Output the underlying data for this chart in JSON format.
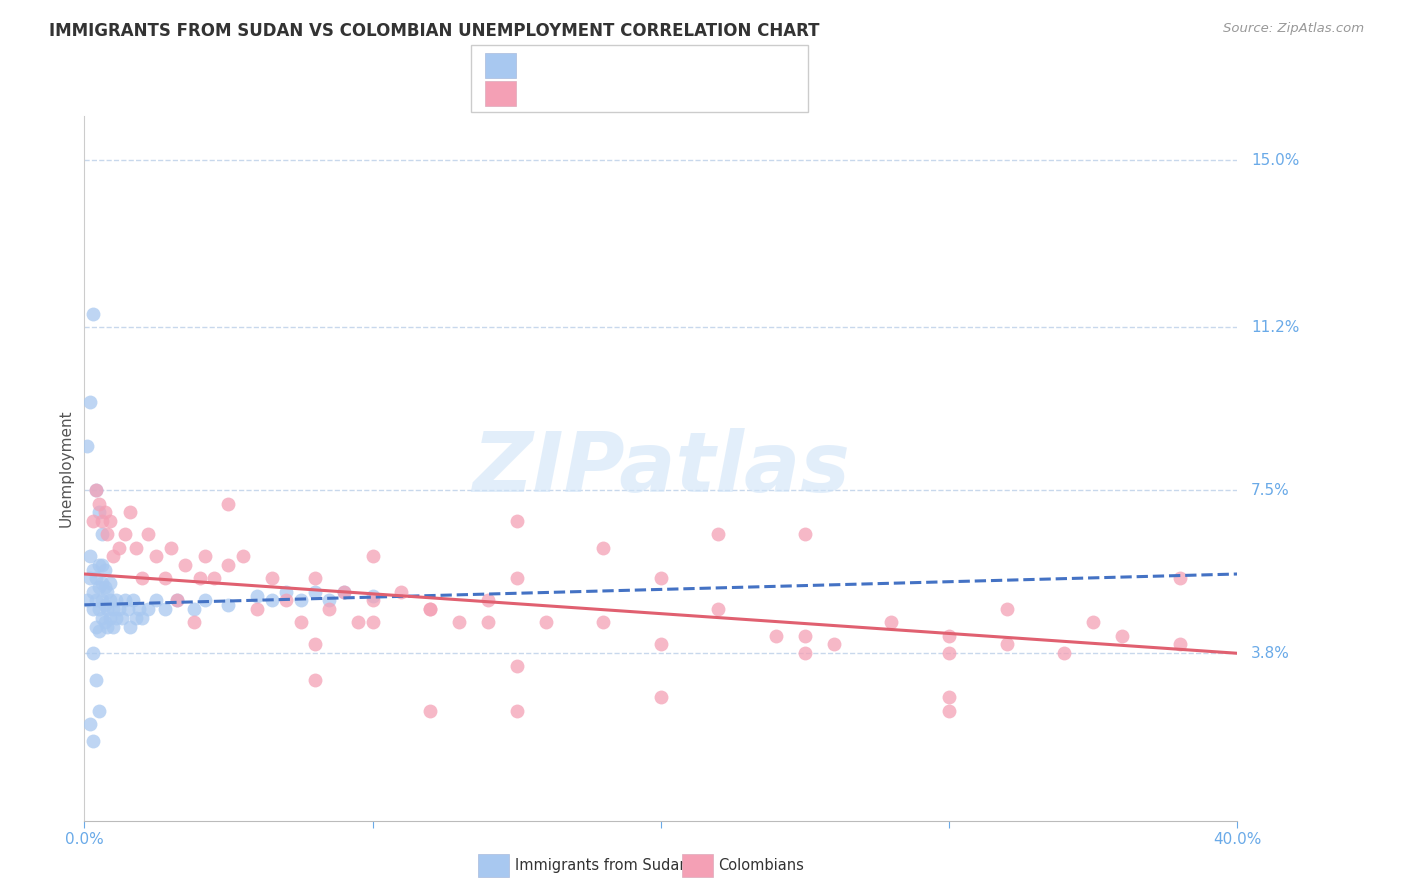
{
  "title": "IMMIGRANTS FROM SUDAN VS COLOMBIAN UNEMPLOYMENT CORRELATION CHART",
  "source": "Source: ZipAtlas.com",
  "ylabel": "Unemployment",
  "yticks": [
    0.038,
    0.075,
    0.112,
    0.15
  ],
  "ytick_labels": [
    "3.8%",
    "7.5%",
    "11.2%",
    "15.0%"
  ],
  "xlim": [
    0.0,
    0.4
  ],
  "ylim": [
    0.0,
    0.16
  ],
  "watermark": "ZIPatlas",
  "blue_color": "#A8C8F0",
  "pink_color": "#F4A0B5",
  "blue_line_color": "#4472C4",
  "pink_line_color": "#E06070",
  "tick_color": "#6aaae8",
  "grid_color": "#C8D8EC",
  "legend_label_blue": "Immigrants from Sudan",
  "legend_label_pink": "Colombians",
  "blue_scatter_x": [
    0.001,
    0.002,
    0.002,
    0.003,
    0.003,
    0.003,
    0.004,
    0.004,
    0.004,
    0.005,
    0.005,
    0.005,
    0.005,
    0.006,
    0.006,
    0.006,
    0.006,
    0.007,
    0.007,
    0.007,
    0.007,
    0.008,
    0.008,
    0.008,
    0.009,
    0.009,
    0.009,
    0.01,
    0.01,
    0.011,
    0.011,
    0.012,
    0.013,
    0.014,
    0.015,
    0.016,
    0.017,
    0.018,
    0.019,
    0.02,
    0.022,
    0.025,
    0.028,
    0.032,
    0.038,
    0.042,
    0.05,
    0.06,
    0.065,
    0.07,
    0.075,
    0.08,
    0.085,
    0.09,
    0.1
  ],
  "blue_scatter_y": [
    0.05,
    0.055,
    0.06,
    0.048,
    0.052,
    0.057,
    0.044,
    0.05,
    0.055,
    0.043,
    0.048,
    0.053,
    0.058,
    0.046,
    0.05,
    0.054,
    0.058,
    0.045,
    0.049,
    0.053,
    0.057,
    0.044,
    0.048,
    0.052,
    0.046,
    0.05,
    0.054,
    0.044,
    0.048,
    0.046,
    0.05,
    0.048,
    0.046,
    0.05,
    0.048,
    0.044,
    0.05,
    0.046,
    0.048,
    0.046,
    0.048,
    0.05,
    0.048,
    0.05,
    0.048,
    0.05,
    0.049,
    0.051,
    0.05,
    0.052,
    0.05,
    0.052,
    0.05,
    0.052,
    0.051
  ],
  "blue_outliers_x": [
    0.001,
    0.002,
    0.003,
    0.004,
    0.005,
    0.006,
    0.003,
    0.004,
    0.005,
    0.002,
    0.003
  ],
  "blue_outliers_y": [
    0.085,
    0.095,
    0.115,
    0.075,
    0.07,
    0.065,
    0.038,
    0.032,
    0.025,
    0.022,
    0.018
  ],
  "pink_scatter_x": [
    0.003,
    0.004,
    0.005,
    0.006,
    0.007,
    0.008,
    0.009,
    0.01,
    0.012,
    0.014,
    0.016,
    0.018,
    0.02,
    0.022,
    0.025,
    0.028,
    0.03,
    0.032,
    0.035,
    0.038,
    0.04,
    0.042,
    0.045,
    0.05,
    0.055,
    0.06,
    0.065,
    0.07,
    0.075,
    0.08,
    0.085,
    0.09,
    0.095,
    0.1,
    0.11,
    0.12,
    0.13,
    0.14,
    0.15,
    0.16,
    0.18,
    0.2,
    0.22,
    0.24,
    0.26,
    0.28,
    0.3,
    0.32,
    0.34,
    0.36,
    0.38,
    0.05,
    0.08,
    0.12,
    0.15,
    0.2,
    0.25,
    0.3,
    0.35,
    0.1,
    0.18,
    0.25,
    0.32,
    0.08,
    0.12,
    0.15,
    0.2,
    0.1,
    0.15,
    0.25,
    0.3,
    0.38,
    0.14,
    0.22,
    0.3
  ],
  "pink_scatter_y": [
    0.068,
    0.075,
    0.072,
    0.068,
    0.07,
    0.065,
    0.068,
    0.06,
    0.062,
    0.065,
    0.07,
    0.062,
    0.055,
    0.065,
    0.06,
    0.055,
    0.062,
    0.05,
    0.058,
    0.045,
    0.055,
    0.06,
    0.055,
    0.058,
    0.06,
    0.048,
    0.055,
    0.05,
    0.045,
    0.04,
    0.048,
    0.052,
    0.045,
    0.05,
    0.052,
    0.048,
    0.045,
    0.05,
    0.055,
    0.045,
    0.045,
    0.04,
    0.048,
    0.042,
    0.04,
    0.045,
    0.042,
    0.04,
    0.038,
    0.042,
    0.04,
    0.072,
    0.055,
    0.048,
    0.068,
    0.055,
    0.042,
    0.028,
    0.045,
    0.06,
    0.062,
    0.038,
    0.048,
    0.032,
    0.025,
    0.035,
    0.028,
    0.045,
    0.025,
    0.065,
    0.038,
    0.055,
    0.045,
    0.065,
    0.025
  ]
}
